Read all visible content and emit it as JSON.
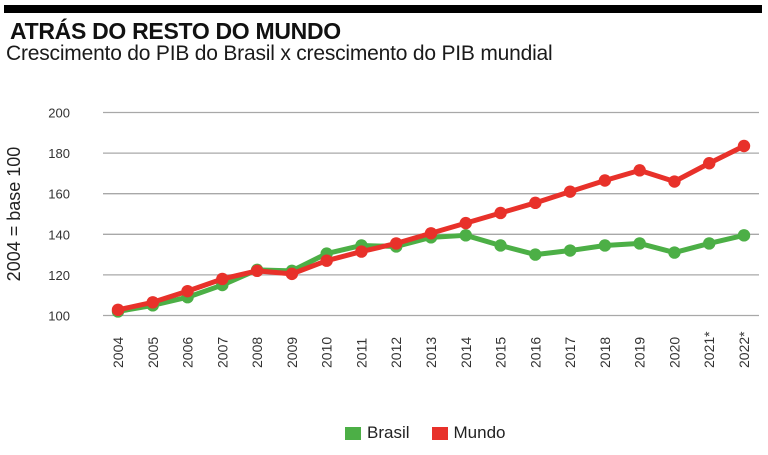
{
  "header": {
    "title": "ATRÁS DO RESTO DO MUNDO",
    "subtitle": "Crescimento do PIB do Brasil x crescimento do PIB mundial"
  },
  "chart_data": {
    "type": "line",
    "title": "ATRÁS DO RESTO DO MUNDO",
    "subtitle": "Crescimento do PIB do Brasil x crescimento do PIB mundial",
    "xlabel": "",
    "ylabel": "2004 = base 100",
    "ylim": [
      100,
      200
    ],
    "yticks": [
      100,
      120,
      140,
      160,
      180,
      200
    ],
    "grid": true,
    "legend_position": "bottom-center",
    "categories": [
      "2004",
      "2005",
      "2006",
      "2007",
      "2008",
      "2009",
      "2010",
      "2011",
      "2012",
      "2013",
      "2014",
      "2015",
      "2016",
      "2017",
      "2018",
      "2019",
      "2020",
      "2021*",
      "2022*"
    ],
    "series": [
      {
        "name": "Brasil",
        "color": "#4caf46",
        "values": [
          102,
          105,
          109,
          115,
          122.5,
          122,
          130.5,
          134.5,
          134,
          138.5,
          139.5,
          134.5,
          130,
          132,
          134.5,
          135.5,
          131,
          135.5,
          139.5
        ]
      },
      {
        "name": "Mundo",
        "color": "#e8312a",
        "values": [
          102.8,
          106.5,
          112,
          118,
          122,
          120.5,
          127,
          131.5,
          135.5,
          140.5,
          145.5,
          150.5,
          155.5,
          161,
          166.5,
          171.5,
          166,
          175,
          183.5
        ]
      }
    ]
  }
}
